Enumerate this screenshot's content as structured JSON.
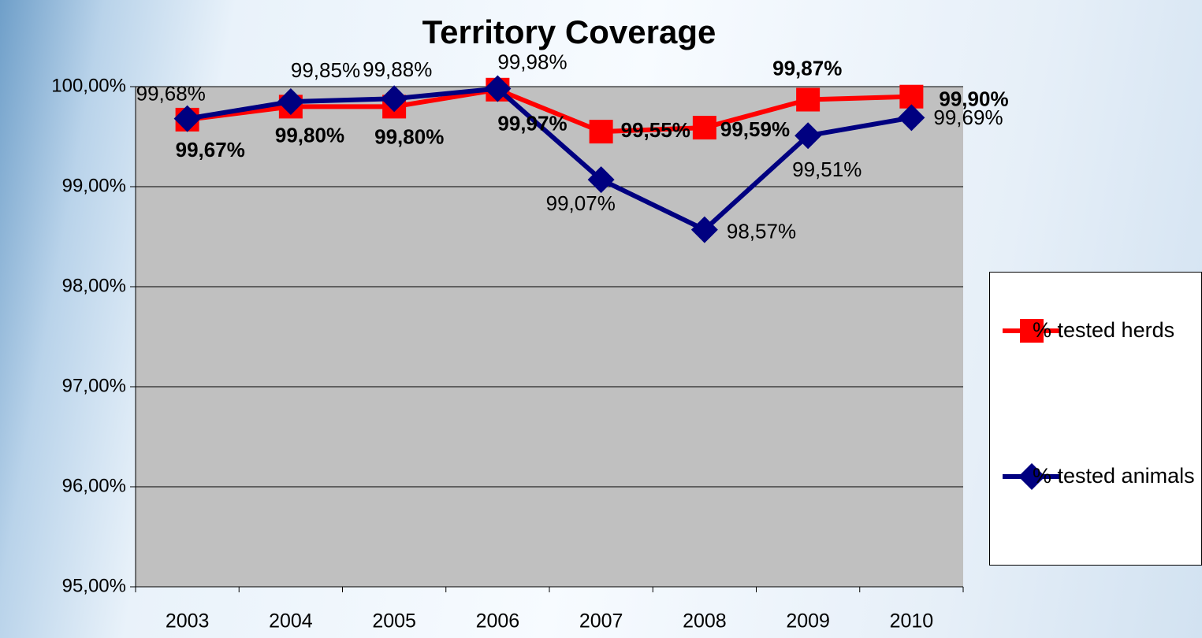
{
  "chart_data": {
    "type": "line",
    "title": "Territory Coverage",
    "categories": [
      "2003",
      "2004",
      "2005",
      "2006",
      "2007",
      "2008",
      "2009",
      "2010"
    ],
    "series": [
      {
        "name": "% tested herds",
        "color": "#ff0000",
        "marker": "square",
        "values": [
          99.67,
          99.8,
          99.8,
          99.97,
          99.55,
          99.59,
          99.87,
          99.9
        ],
        "value_labels": [
          "99,67%",
          "99,80%",
          "99,80%",
          "99,97%",
          "99,55%",
          "99,59%",
          "99,87%",
          "99,90%"
        ]
      },
      {
        "name": "% tested animals",
        "color": "#000080",
        "marker": "diamond",
        "values": [
          99.68,
          99.85,
          99.88,
          99.98,
          99.07,
          98.57,
          99.51,
          99.69
        ],
        "value_labels": [
          "99,68%",
          "99,85%",
          "99,88%",
          "99,98%",
          "99,07%",
          "98,57%",
          "99,51%",
          "99,69%"
        ]
      }
    ],
    "ylim": [
      95,
      100
    ],
    "yticks": [
      {
        "value": 95,
        "label": "95,00%"
      },
      {
        "value": 96,
        "label": "96,00%"
      },
      {
        "value": 97,
        "label": "97,00%"
      },
      {
        "value": 98,
        "label": "98,00%"
      },
      {
        "value": 99,
        "label": "99,00%"
      },
      {
        "value": 100,
        "label": "100,00%"
      }
    ],
    "grid": true,
    "legend": "right",
    "plot_background": "#c0c0c0"
  }
}
